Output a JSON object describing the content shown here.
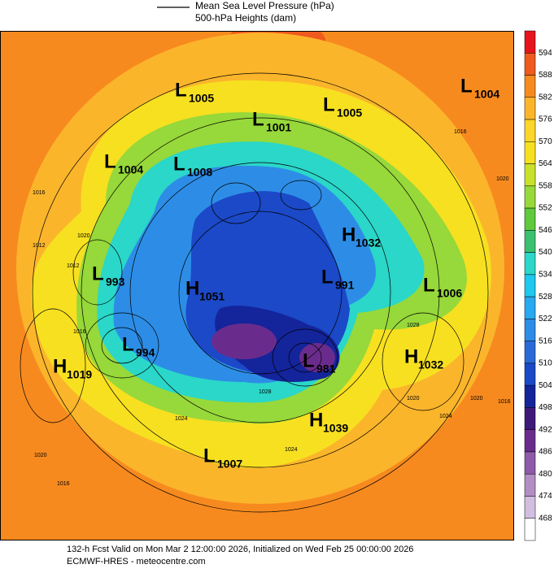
{
  "legend": {
    "mslp_label": "Mean Sea Level Pressure (hPa)",
    "height_label": "500-hPa Heights (dam)"
  },
  "colorbar": {
    "labels": [
      594,
      588,
      582,
      576,
      570,
      564,
      558,
      552,
      546,
      540,
      534,
      528,
      522,
      516,
      510,
      504,
      498,
      492,
      486,
      480,
      474,
      468
    ]
  },
  "centers": [
    {
      "letter": "L",
      "value": 1005
    },
    {
      "letter": "L",
      "value": 1001
    },
    {
      "letter": "L",
      "value": 1005
    },
    {
      "letter": "L",
      "value": 1004
    },
    {
      "letter": "L",
      "value": 1004
    },
    {
      "letter": "L",
      "value": 1008
    },
    {
      "letter": "H",
      "value": 1032
    },
    {
      "letter": "L",
      "value": 993
    },
    {
      "letter": "H",
      "value": 1051
    },
    {
      "letter": "L",
      "value": 991
    },
    {
      "letter": "L",
      "value": 1006
    },
    {
      "letter": "L",
      "value": 994
    },
    {
      "letter": "H",
      "value": 1019
    },
    {
      "letter": "L",
      "value": 981
    },
    {
      "letter": "H",
      "value": 1032
    },
    {
      "letter": "H",
      "value": 1039
    },
    {
      "letter": "L",
      "value": 1007
    }
  ],
  "isobar_labels": [
    1016,
    1012,
    1020,
    1024,
    1028,
    1020,
    1016,
    1024,
    1020,
    1016,
    1016,
    1012,
    1020,
    1028,
    1024,
    1020,
    1016
  ],
  "footer": {
    "line1": "132-h Fcst Valid on Mon Mar  2 12:00:00 2026, Initialized on Wed Feb 25 00:00:00 2026",
    "line2": "ECMWF-HRES  - meteocentre.com"
  }
}
